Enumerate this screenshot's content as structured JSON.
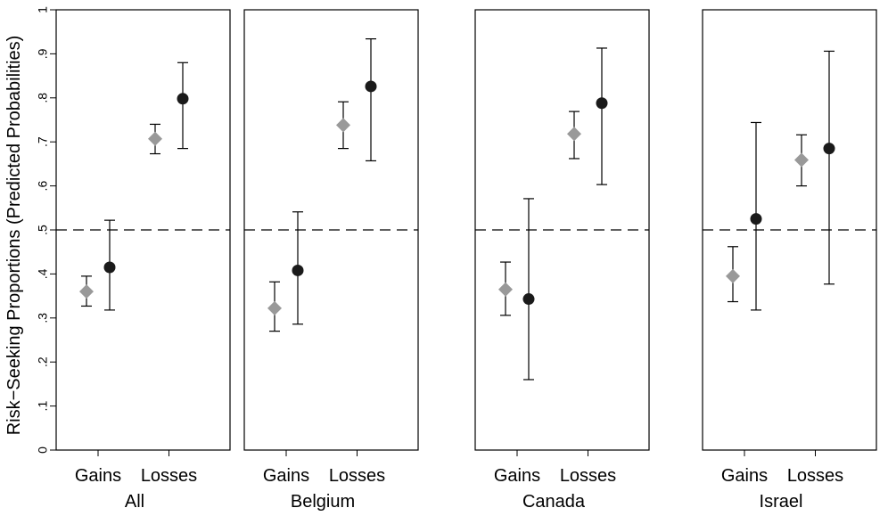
{
  "chart_data": {
    "type": "scatter",
    "ylabel": "Risk−Seeking Proportions (Predicted Probabilities)",
    "ylim": [
      0,
      1
    ],
    "yticks": [
      {
        "value": 0,
        "label": "0"
      },
      {
        "value": 0.1,
        "label": ".1"
      },
      {
        "value": 0.2,
        "label": ".2"
      },
      {
        "value": 0.3,
        "label": ".3"
      },
      {
        "value": 0.4,
        "label": ".4"
      },
      {
        "value": 0.5,
        "label": ".5"
      },
      {
        "value": 0.6,
        "label": ".6"
      },
      {
        "value": 0.7,
        "label": ".7"
      },
      {
        "value": 0.8,
        "label": ".8"
      },
      {
        "value": 0.9,
        "label": ".9"
      },
      {
        "value": 1,
        "label": "1"
      }
    ],
    "reference_line": 0.5,
    "categories": [
      "Gains",
      "Losses"
    ],
    "marker_colors": {
      "diamond": "#999999",
      "circle": "#1a1a1a"
    },
    "panels": [
      {
        "title": "All",
        "series": [
          {
            "marker": "diamond",
            "points": [
              {
                "category": "Gains",
                "value": 0.36,
                "ci": [
                  0.327,
                  0.395
                ]
              },
              {
                "category": "Losses",
                "value": 0.707,
                "ci": [
                  0.673,
                  0.74
                ]
              }
            ]
          },
          {
            "marker": "circle",
            "points": [
              {
                "category": "Gains",
                "value": 0.415,
                "ci": [
                  0.318,
                  0.522
                ]
              },
              {
                "category": "Losses",
                "value": 0.798,
                "ci": [
                  0.685,
                  0.88
                ]
              }
            ]
          }
        ]
      },
      {
        "title": "Belgium",
        "series": [
          {
            "marker": "diamond",
            "points": [
              {
                "category": "Gains",
                "value": 0.322,
                "ci": [
                  0.27,
                  0.382
                ]
              },
              {
                "category": "Losses",
                "value": 0.738,
                "ci": [
                  0.685,
                  0.791
                ]
              }
            ]
          },
          {
            "marker": "circle",
            "points": [
              {
                "category": "Gains",
                "value": 0.408,
                "ci": [
                  0.286,
                  0.541
                ]
              },
              {
                "category": "Losses",
                "value": 0.826,
                "ci": [
                  0.657,
                  0.934
                ]
              }
            ]
          }
        ]
      },
      {
        "title": "Canada",
        "series": [
          {
            "marker": "diamond",
            "points": [
              {
                "category": "Gains",
                "value": 0.365,
                "ci": [
                  0.306,
                  0.427
                ]
              },
              {
                "category": "Losses",
                "value": 0.718,
                "ci": [
                  0.662,
                  0.769
                ]
              }
            ]
          },
          {
            "marker": "circle",
            "points": [
              {
                "category": "Gains",
                "value": 0.343,
                "ci": [
                  0.16,
                  0.571
                ]
              },
              {
                "category": "Losses",
                "value": 0.788,
                "ci": [
                  0.603,
                  0.913
                ]
              }
            ]
          }
        ]
      },
      {
        "title": "Israel",
        "series": [
          {
            "marker": "diamond",
            "points": [
              {
                "category": "Gains",
                "value": 0.395,
                "ci": [
                  0.337,
                  0.462
                ]
              },
              {
                "category": "Losses",
                "value": 0.659,
                "ci": [
                  0.6,
                  0.716
                ]
              }
            ]
          },
          {
            "marker": "circle",
            "points": [
              {
                "category": "Gains",
                "value": 0.525,
                "ci": [
                  0.318,
                  0.744
                ]
              },
              {
                "category": "Losses",
                "value": 0.685,
                "ci": [
                  0.377,
                  0.906
                ]
              }
            ]
          }
        ]
      }
    ]
  }
}
